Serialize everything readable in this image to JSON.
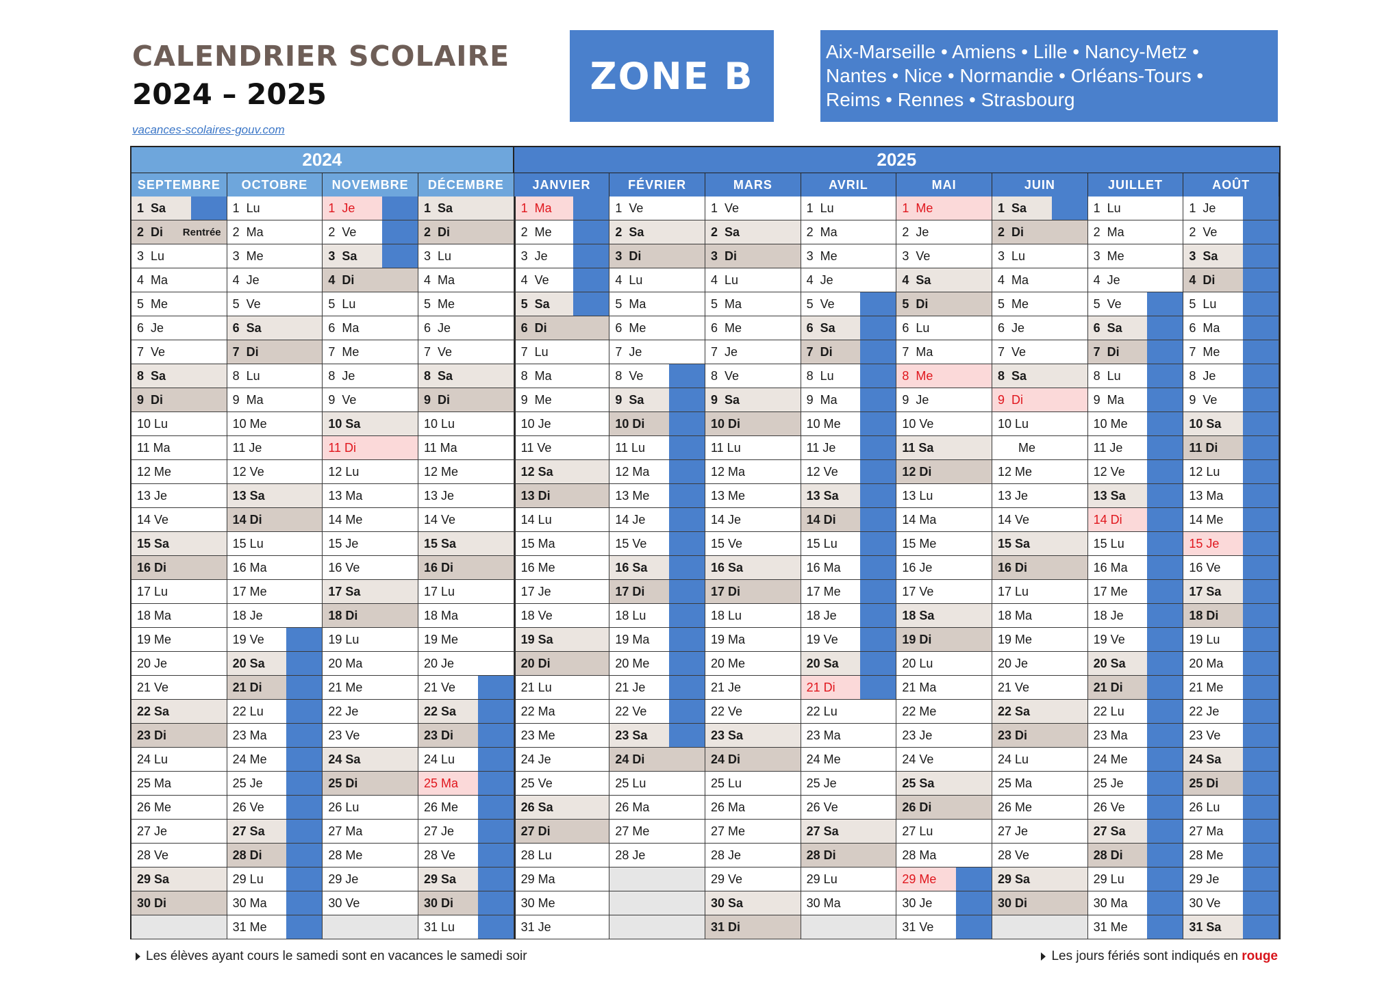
{
  "header": {
    "title_line1": "CALENDRIER SCOLAIRE",
    "title_line2": "2024 – 2025",
    "site": "vacances-scolaires-gouv.com",
    "zone": "ZONE B",
    "academies_line1": "Aix-Marseille • Amiens • Lille • Nancy-Metz •",
    "academies_line2": "Nantes • Nice • Normandie • Orléans-Tours •",
    "academies_line3": "Reims • Rennes • Strasbourg"
  },
  "colors": {
    "vacation": "#4a80cc",
    "year2024": "#6ea6dc",
    "year2025": "#4a80cc",
    "holiday_text": "#e0161d"
  },
  "calendar": {
    "years": [
      {
        "label": "2024",
        "months": 4
      },
      {
        "label": "2025",
        "months": 8
      }
    ],
    "rentree_label": "Rentrée",
    "months": [
      {
        "name": "SEPTEMBRE",
        "start_dow": 6,
        "days": 30,
        "holidays": [],
        "vacation_days": [
          1
        ],
        "rentree_day": 2
      },
      {
        "name": "OCTOBRE",
        "start_dow": 1,
        "days": 31,
        "holidays": [],
        "vacation_days": [
          19,
          20,
          21,
          22,
          23,
          24,
          25,
          26,
          27,
          28,
          29,
          30,
          31
        ]
      },
      {
        "name": "NOVEMBRE",
        "start_dow": 4,
        "days": 30,
        "holidays": [
          1,
          11
        ],
        "vacation_days": [
          1,
          2,
          3
        ]
      },
      {
        "name": "DÉCEMBRE",
        "start_dow": 6,
        "days": 31,
        "holidays": [
          25
        ],
        "vacation_days": [
          21,
          22,
          23,
          24,
          25,
          26,
          27,
          28,
          29,
          30,
          31
        ]
      },
      {
        "name": "JANVIER",
        "start_dow": 2,
        "days": 31,
        "holidays": [
          1
        ],
        "vacation_days": [
          1,
          2,
          3,
          4,
          5
        ]
      },
      {
        "name": "FÉVRIER",
        "start_dow": 5,
        "days": 28,
        "holidays": [],
        "vacation_days": [
          8,
          9,
          10,
          11,
          12,
          13,
          14,
          15,
          16,
          17,
          18,
          19,
          20,
          21,
          22,
          23
        ]
      },
      {
        "name": "MARS",
        "start_dow": 5,
        "days": 31,
        "holidays": [],
        "vacation_days": []
      },
      {
        "name": "AVRIL",
        "start_dow": 1,
        "days": 30,
        "holidays": [
          21
        ],
        "vacation_days": [
          5,
          6,
          7,
          8,
          9,
          10,
          11,
          12,
          13,
          14,
          15,
          16,
          17,
          18,
          19,
          20,
          21
        ]
      },
      {
        "name": "MAI",
        "start_dow": 3,
        "days": 31,
        "holidays": [
          1,
          8,
          29
        ],
        "vacation_days": [
          29,
          30,
          31
        ]
      },
      {
        "name": "JUIN",
        "start_dow": 6,
        "days": 30,
        "holidays": [
          9
        ],
        "vacation_days": [
          1
        ]
      },
      {
        "name": "JUILLET",
        "start_dow": 1,
        "days": 31,
        "holidays": [
          14
        ],
        "vacation_days": [
          5,
          6,
          7,
          8,
          9,
          10,
          11,
          12,
          13,
          14,
          15,
          16,
          17,
          18,
          19,
          20,
          21,
          22,
          23,
          24,
          25,
          26,
          27,
          28,
          29,
          30,
          31
        ]
      },
      {
        "name": "AOÛT",
        "start_dow": 4,
        "days": 31,
        "holidays": [
          15
        ],
        "vacation_days": [
          1,
          2,
          3,
          4,
          5,
          6,
          7,
          8,
          9,
          10,
          11,
          12,
          13,
          14,
          15,
          16,
          17,
          18,
          19,
          20,
          21,
          22,
          23,
          24,
          25,
          26,
          27,
          28,
          29,
          30,
          31
        ]
      }
    ],
    "day_abbr": [
      "Di",
      "Lu",
      "Ma",
      "Me",
      "Je",
      "Ve",
      "Sa"
    ],
    "special_cells": [
      {
        "month": 9,
        "day": 11,
        "text": "      Me"
      }
    ]
  },
  "footer": {
    "note_left": "Les élèves ayant cours le samedi sont en vacances le samedi soir",
    "note_right_prefix": "Les jours fériés sont indiqués en ",
    "note_right_red": "rouge"
  }
}
